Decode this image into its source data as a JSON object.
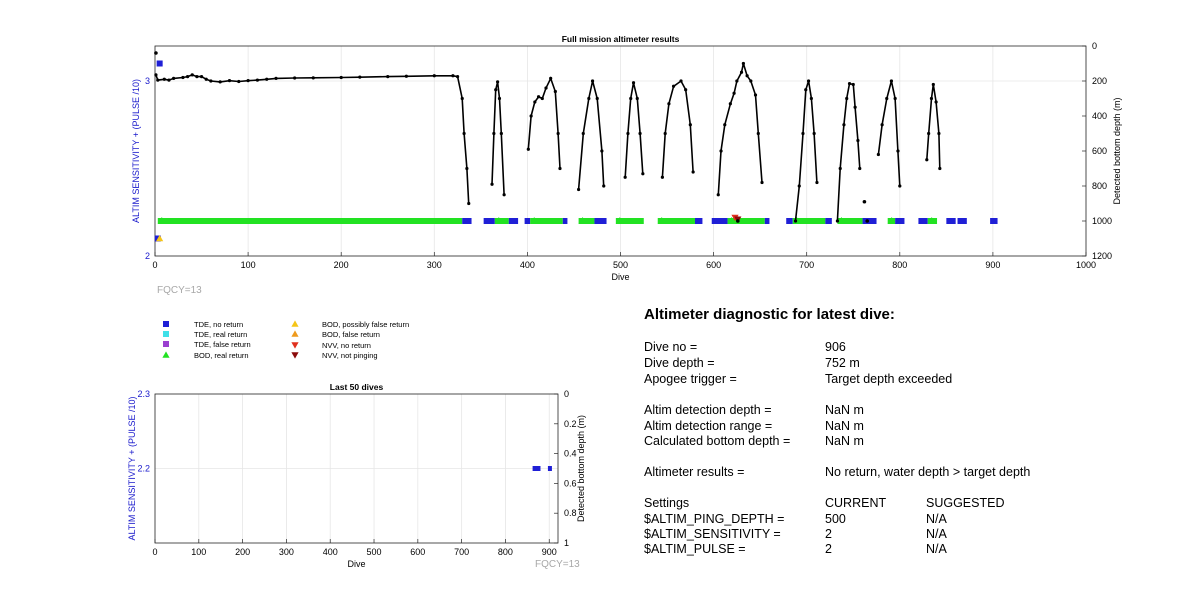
{
  "colors": {
    "series": "#000000",
    "tde_no_return": "#1f1fd6",
    "tde_real_return": "#3fe0e8",
    "tde_false_return": "#9a3fd0",
    "bod_real_return": "#22e222",
    "bod_possibly_false": "#f5c518",
    "bod_false": "#ee9a1c",
    "nvv_no_return": "#e0301e",
    "nvv_not_pinging": "#8b0a0a",
    "left_axis": "#1a1acc",
    "fqcy": "#a8a8a8"
  },
  "chart_data": [
    {
      "type": "scatter",
      "title": "Full mission altimeter results",
      "xlabel": "Dive",
      "ylabel_left": "ALTIM SENSITIVITY + (PULSE /10)",
      "ylabel_right": "Detected bottom depth (m)",
      "xlim": [
        0,
        1000
      ],
      "ylim_left": [
        2,
        3.2
      ],
      "ylim_right": [
        1200,
        0
      ],
      "right_axis_reversed": true,
      "grid": true,
      "x_ticks": [
        "0",
        "100",
        "200",
        "300",
        "400",
        "500",
        "600",
        "700",
        "800",
        "900",
        "1000"
      ],
      "y_left_ticks": [
        "2",
        "3"
      ],
      "y_right_ticks": [
        "0",
        "200",
        "400",
        "600",
        "800",
        "1000",
        "1200"
      ],
      "footnote": "FQCY=13",
      "settings_points": [
        {
          "x": 5,
          "y": 3.1,
          "class": "TDE, no return"
        },
        {
          "x": 3,
          "y": 2.1,
          "class": "TDE, no return"
        },
        {
          "x": 5,
          "y": 2.1,
          "class": "BOD, possibly false return"
        }
      ],
      "bottom_depth_segments": [
        {
          "points": [
            [
              1,
              165
            ],
            [
              3,
              195
            ],
            [
              10,
              190
            ],
            [
              15,
              195
            ],
            [
              20,
              185
            ],
            [
              30,
              180
            ],
            [
              35,
              175
            ],
            [
              40,
              165
            ],
            [
              45,
              175
            ],
            [
              50,
              175
            ],
            [
              55,
              190
            ],
            [
              60,
              200
            ],
            [
              70,
              205
            ],
            [
              80,
              198
            ],
            [
              90,
              203
            ],
            [
              100,
              198
            ],
            [
              110,
              195
            ],
            [
              120,
              190
            ],
            [
              130,
              185
            ],
            [
              150,
              183
            ],
            [
              170,
              182
            ],
            [
              200,
              180
            ],
            [
              220,
              178
            ],
            [
              250,
              175
            ],
            [
              270,
              173
            ],
            [
              300,
              170
            ],
            [
              320,
              170
            ],
            [
              325,
              175
            ],
            [
              330,
              300
            ],
            [
              332,
              500
            ],
            [
              335,
              700
            ],
            [
              337,
              900
            ]
          ]
        },
        {
          "points": [
            [
              362,
              790
            ],
            [
              364,
              500
            ],
            [
              366,
              250
            ],
            [
              368,
              205
            ],
            [
              370,
              300
            ],
            [
              372,
              500
            ],
            [
              375,
              850
            ]
          ]
        },
        {
          "points": [
            [
              401,
              590
            ],
            [
              404,
              400
            ],
            [
              408,
              320
            ],
            [
              412,
              290
            ],
            [
              416,
              300
            ],
            [
              420,
              240
            ],
            [
              425,
              185
            ],
            [
              430,
              260
            ],
            [
              433,
              500
            ],
            [
              435,
              700
            ]
          ]
        },
        {
          "points": [
            [
              455,
              820
            ],
            [
              460,
              500
            ],
            [
              466,
              300
            ],
            [
              470,
              200
            ],
            [
              475,
              300
            ],
            [
              480,
              600
            ],
            [
              482,
              800
            ]
          ]
        },
        {
          "points": [
            [
              505,
              750
            ],
            [
              508,
              500
            ],
            [
              511,
              300
            ],
            [
              514,
              210
            ],
            [
              518,
              300
            ],
            [
              521,
              500
            ],
            [
              524,
              730
            ]
          ]
        },
        {
          "points": [
            [
              545,
              750
            ],
            [
              548,
              500
            ],
            [
              552,
              330
            ],
            [
              557,
              230
            ],
            [
              565,
              200
            ],
            [
              570,
              250
            ],
            [
              575,
              450
            ],
            [
              578,
              720
            ]
          ]
        },
        {
          "points": [
            [
              605,
              850
            ],
            [
              608,
              600
            ],
            [
              612,
              450
            ],
            [
              618,
              330
            ],
            [
              622,
              270
            ],
            [
              625,
              200
            ],
            [
              630,
              150
            ],
            [
              632,
              100
            ],
            [
              636,
              170
            ],
            [
              640,
              200
            ],
            [
              645,
              280
            ],
            [
              648,
              500
            ],
            [
              652,
              780
            ]
          ]
        },
        {
          "points": [
            [
              688,
              1000
            ],
            [
              692,
              800
            ],
            [
              696,
              500
            ],
            [
              699,
              250
            ],
            [
              702,
              200
            ],
            [
              705,
              300
            ],
            [
              708,
              500
            ],
            [
              711,
              780
            ]
          ]
        },
        {
          "points": [
            [
              733,
              1000
            ],
            [
              736,
              700
            ],
            [
              740,
              450
            ],
            [
              743,
              300
            ],
            [
              746,
              215
            ],
            [
              750,
              220
            ],
            [
              752,
              350
            ],
            [
              755,
              540
            ],
            [
              757,
              700
            ]
          ]
        },
        {
          "points": [
            [
              777,
              620
            ],
            [
              781,
              450
            ],
            [
              786,
              300
            ],
            [
              791,
              200
            ],
            [
              795,
              300
            ],
            [
              798,
              600
            ],
            [
              800,
              800
            ]
          ]
        },
        {
          "points": [
            [
              829,
              650
            ],
            [
              831,
              500
            ],
            [
              834,
              300
            ],
            [
              836,
              220
            ],
            [
              839,
              320
            ],
            [
              842,
              500
            ],
            [
              843,
              700
            ]
          ]
        }
      ],
      "isolated_depths": [
        [
          1,
          40
        ],
        [
          626,
          1000
        ],
        [
          762,
          890
        ],
        [
          765,
          1000
        ]
      ],
      "status_spans": [
        {
          "x0": 3,
          "x1": 330,
          "class": "BOD, real return"
        },
        {
          "x0": 330,
          "x1": 340,
          "class": "TDE, no return"
        },
        {
          "x0": 353,
          "x1": 365,
          "class": "TDE, no return"
        },
        {
          "x0": 365,
          "x1": 380,
          "class": "BOD, real return"
        },
        {
          "x0": 380,
          "x1": 390,
          "class": "TDE, no return"
        },
        {
          "x0": 397,
          "x1": 403,
          "class": "TDE, no return"
        },
        {
          "x0": 403,
          "x1": 438,
          "class": "BOD, real return"
        },
        {
          "x0": 438,
          "x1": 443,
          "class": "TDE, no return"
        },
        {
          "x0": 455,
          "x1": 472,
          "class": "BOD, real return"
        },
        {
          "x0": 472,
          "x1": 485,
          "class": "TDE, no return"
        },
        {
          "x0": 495,
          "x1": 525,
          "class": "BOD, real return"
        },
        {
          "x0": 540,
          "x1": 580,
          "class": "BOD, real return"
        },
        {
          "x0": 580,
          "x1": 588,
          "class": "TDE, no return"
        },
        {
          "x0": 598,
          "x1": 615,
          "class": "TDE, no return"
        },
        {
          "x0": 615,
          "x1": 655,
          "class": "BOD, real return"
        },
        {
          "x0": 655,
          "x1": 660,
          "class": "TDE, no return"
        },
        {
          "x0": 678,
          "x1": 685,
          "class": "TDE, no return"
        },
        {
          "x0": 685,
          "x1": 720,
          "class": "BOD, real return"
        },
        {
          "x0": 720,
          "x1": 727,
          "class": "TDE, no return"
        },
        {
          "x0": 733,
          "x1": 760,
          "class": "BOD, real return"
        },
        {
          "x0": 760,
          "x1": 775,
          "class": "TDE, no return"
        },
        {
          "x0": 787,
          "x1": 795,
          "class": "BOD, real return"
        },
        {
          "x0": 795,
          "x1": 805,
          "class": "TDE, no return"
        },
        {
          "x0": 820,
          "x1": 830,
          "class": "TDE, no return"
        },
        {
          "x0": 830,
          "x1": 840,
          "class": "BOD, real return"
        },
        {
          "x0": 850,
          "x1": 860,
          "class": "TDE, no return"
        },
        {
          "x0": 862,
          "x1": 872,
          "class": "TDE, no return"
        },
        {
          "x0": 897,
          "x1": 905,
          "class": "TDE, no return"
        }
      ],
      "nvv_markers": [
        {
          "x": 623,
          "y": 2.22,
          "class": "NVV, no return"
        },
        {
          "x": 626,
          "y": 2.21,
          "class": "NVV, not pinging"
        }
      ]
    },
    {
      "type": "scatter",
      "title": "Last 50 dives",
      "xlabel": "Dive",
      "ylabel_left": "ALTIM SENSITIVITY + (PULSE /10)",
      "ylabel_right": "Detected bottom depth (m)",
      "xlim": [
        0,
        920
      ],
      "ylim_left": [
        2.1,
        2.3
      ],
      "ylim_right": [
        1,
        0
      ],
      "right_axis_reversed": true,
      "grid": true,
      "x_ticks": [
        "0",
        "100",
        "200",
        "300",
        "400",
        "500",
        "600",
        "700",
        "800",
        "900"
      ],
      "y_left_ticks": [
        "2.2",
        "2.3"
      ],
      "y_right_ticks": [
        "0",
        "0.2",
        "0.4",
        "0.6",
        "0.8",
        "1"
      ],
      "footnote": "FQCY=13",
      "status_spans": [
        {
          "x0": 862,
          "x1": 880,
          "class": "TDE, no return"
        },
        {
          "x0": 897,
          "x1": 905,
          "class": "TDE, no return"
        }
      ]
    }
  ],
  "legend": {
    "items": [
      {
        "label": "TDE, no return",
        "marker": "square",
        "color_key": "tde_no_return"
      },
      {
        "label": "TDE, real return",
        "marker": "square",
        "color_key": "tde_real_return"
      },
      {
        "label": "TDE, false return",
        "marker": "square",
        "color_key": "tde_false_return"
      },
      {
        "label": "BOD, real return",
        "marker": "triangle-up",
        "color_key": "bod_real_return"
      },
      {
        "label": "BOD, possibly false return",
        "marker": "triangle-up",
        "color_key": "bod_possibly_false"
      },
      {
        "label": "BOD, false return",
        "marker": "triangle-up",
        "color_key": "bod_false"
      },
      {
        "label": "NVV, no return",
        "marker": "triangle-down",
        "color_key": "nvv_no_return"
      },
      {
        "label": "NVV, not pinging",
        "marker": "triangle-down",
        "color_key": "nvv_not_pinging"
      }
    ]
  },
  "diagnostic": {
    "title": "Altimeter diagnostic for latest dive:",
    "dive_no_label": "Dive no =",
    "dive_no": "906",
    "dive_depth_label": "Dive depth =",
    "dive_depth": "752 m",
    "apogee_label": "Apogee trigger =",
    "apogee": "Target depth exceeded",
    "detection_depth_label": "Altim detection depth =",
    "detection_depth": "NaN m",
    "detection_range_label": "Altim detection range =",
    "detection_range": "NaN m",
    "bottom_depth_label": "Calculated bottom depth =",
    "bottom_depth": "NaN m",
    "results_label": "Altimeter results =",
    "results": "No return, water depth > target depth",
    "settings_label": "Settings",
    "current_label": "CURRENT",
    "suggested_label": "SUGGESTED",
    "settings": [
      {
        "name": "$ALTIM_PING_DEPTH =",
        "current": "500",
        "suggested": "N/A"
      },
      {
        "name": "$ALTIM_SENSITIVITY =",
        "current": "2",
        "suggested": "N/A"
      },
      {
        "name": "$ALTIM_PULSE =",
        "current": "2",
        "suggested": "N/A"
      }
    ]
  }
}
